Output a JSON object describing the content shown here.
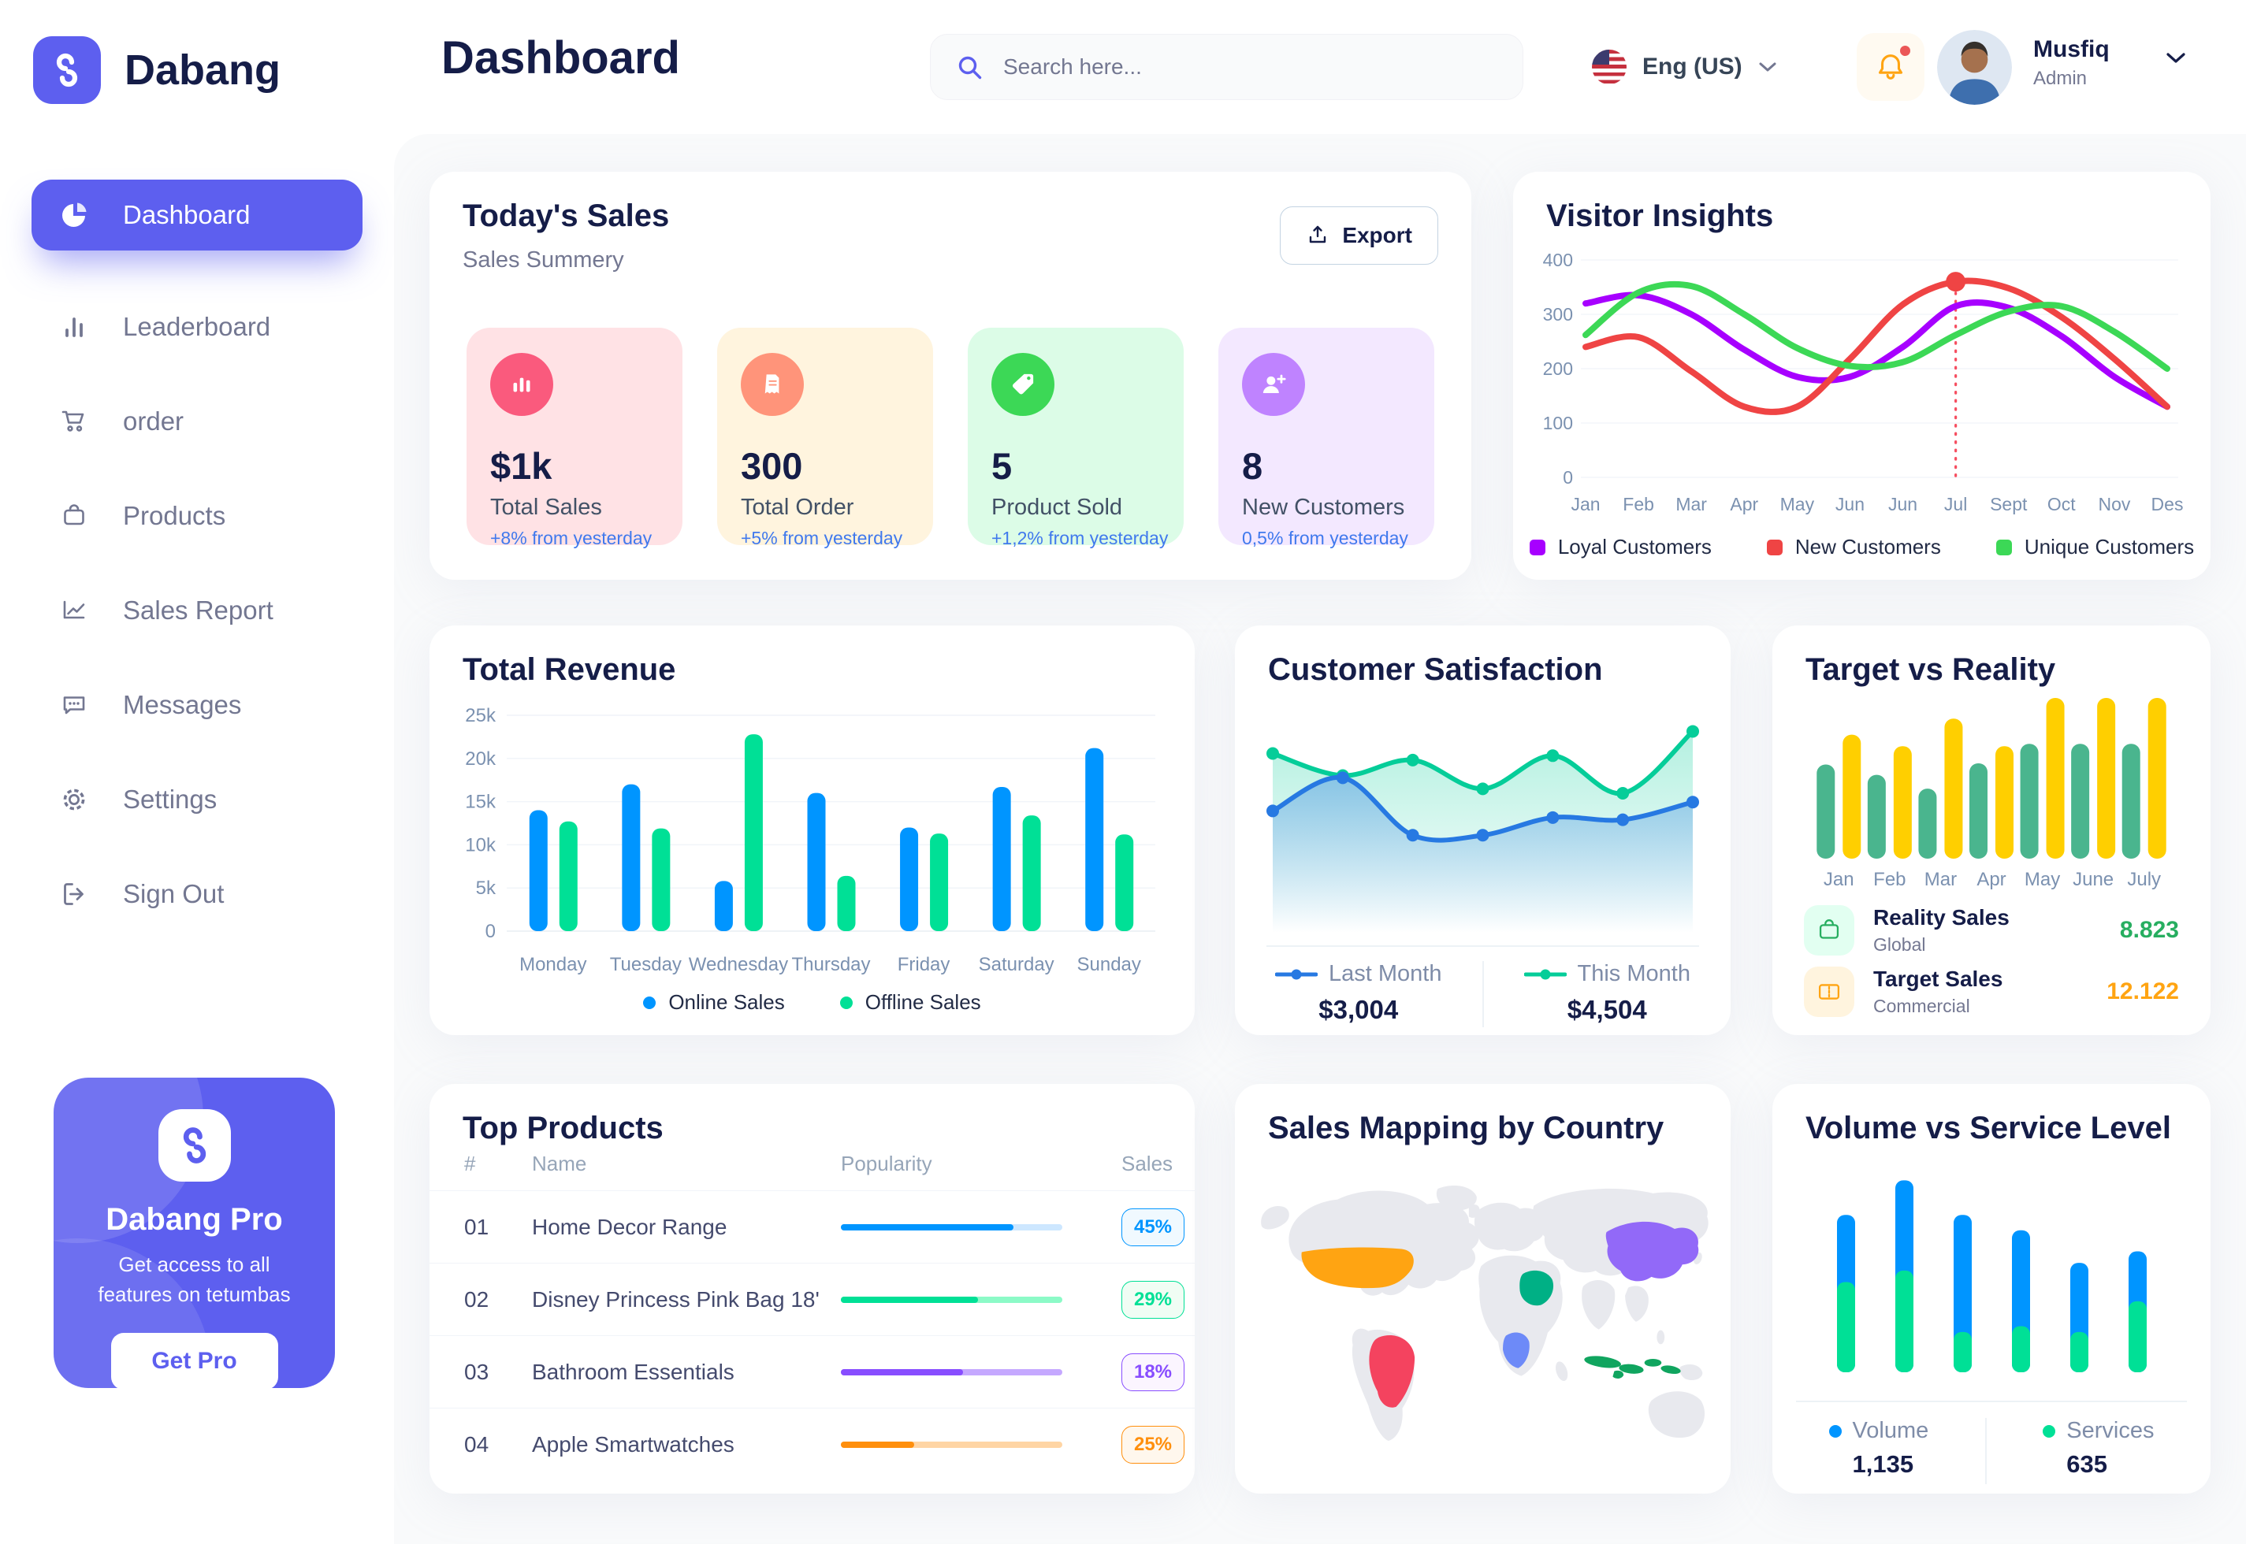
{
  "brand": {
    "name": "Dabang"
  },
  "colors": {
    "primary": "#5D5FEF",
    "navy": "#151D48",
    "gray": "#737791",
    "delta_blue": "#4079ED"
  },
  "topbar": {
    "title": "Dashboard",
    "search_placeholder": "Search here...",
    "language": "Eng (US)",
    "user_name": "Musfiq",
    "user_role": "Admin"
  },
  "sidebar": {
    "items": [
      {
        "label": "Dashboard",
        "icon": "pie-chart-icon",
        "active": true
      },
      {
        "label": "Leaderboard",
        "icon": "bar-chart-icon",
        "active": false
      },
      {
        "label": "order",
        "icon": "cart-icon",
        "active": false
      },
      {
        "label": "Products",
        "icon": "bag-icon",
        "active": false
      },
      {
        "label": "Sales Report",
        "icon": "line-chart-icon",
        "active": false
      },
      {
        "label": "Messages",
        "icon": "chat-icon",
        "active": false
      },
      {
        "label": "Settings",
        "icon": "gear-icon",
        "active": false
      },
      {
        "label": "Sign Out",
        "icon": "sign-out-icon",
        "active": false
      }
    ],
    "promo": {
      "title": "Dabang Pro",
      "subtitle": "Get access to all features on tetumbas",
      "cta": "Get Pro"
    }
  },
  "todays_sales": {
    "title": "Today's Sales",
    "subtitle": "Sales Summery",
    "export_label": "Export",
    "stats": [
      {
        "value": "$1k",
        "label": "Total Sales",
        "delta": "+8% from yesterday",
        "bg": "#FFE2E5",
        "icon_bg": "#FA5A7D",
        "icon": "stat-bar-chart-icon"
      },
      {
        "value": "300",
        "label": "Total Order",
        "delta": "+5% from yesterday",
        "bg": "#FFF4DE",
        "icon_bg": "#FF947A",
        "icon": "stat-receipt-icon"
      },
      {
        "value": "5",
        "label": "Product Sold",
        "delta": "+1,2% from yesterday",
        "bg": "#DCFCE7",
        "icon_bg": "#3CD856",
        "icon": "stat-tag-icon"
      },
      {
        "value": "8",
        "label": "New Customers",
        "delta": "0,5% from yesterday",
        "bg": "#F3E8FF",
        "icon_bg": "#BF83FF",
        "icon": "stat-user-plus-icon"
      }
    ]
  },
  "chart_data": [
    {
      "id": "visitor_insights",
      "type": "line",
      "title": "Visitor Insights",
      "x_labels": [
        "Jan",
        "Feb",
        "Mar",
        "Apr",
        "May",
        "Jun",
        "Jun",
        "Jul",
        "Sept",
        "Oct",
        "Nov",
        "Des"
      ],
      "ylim": [
        0,
        400
      ],
      "yticks": [
        0,
        100,
        200,
        300,
        400
      ],
      "annotation": {
        "x_index": 7,
        "value": 360
      },
      "series": [
        {
          "name": "Loyal Customers",
          "color": "#A700FF",
          "values": [
            320,
            335,
            300,
            235,
            185,
            185,
            240,
            315,
            312,
            260,
            185,
            130
          ]
        },
        {
          "name": "New Customers",
          "color": "#EF4444",
          "values": [
            240,
            258,
            195,
            130,
            130,
            218,
            318,
            360,
            348,
            295,
            218,
            130
          ]
        },
        {
          "name": "Unique Customers",
          "color": "#3CD856",
          "values": [
            262,
            340,
            352,
            300,
            238,
            205,
            212,
            262,
            305,
            315,
            268,
            200
          ]
        }
      ]
    },
    {
      "id": "total_revenue",
      "type": "bar",
      "title": "Total Revenue",
      "categories": [
        "Monday",
        "Tuesday",
        "Wednesday",
        "Thursday",
        "Friday",
        "Saturday",
        "Sunday"
      ],
      "ylim": [
        0,
        25000
      ],
      "ytick_labels": [
        "0",
        "5k",
        "10k",
        "15k",
        "20k",
        "25k"
      ],
      "series": [
        {
          "name": "Online Sales",
          "color": "#0095FF",
          "values": [
            14000,
            17000,
            5800,
            16000,
            12000,
            16700,
            21200
          ]
        },
        {
          "name": "Offline Sales",
          "color": "#00E096",
          "values": [
            12700,
            11900,
            22800,
            6400,
            11300,
            13400,
            11200
          ]
        }
      ]
    },
    {
      "id": "customer_satisfaction",
      "type": "area",
      "title": "Customer Satisfaction",
      "ylim": [
        1.2,
        5.3
      ],
      "series": [
        {
          "name": "Last Month",
          "total": "$3,004",
          "color": "#2779E2",
          "values": [
            3.1,
            3.85,
            2.55,
            2.55,
            2.95,
            2.9,
            3.3
          ]
        },
        {
          "name": "This Month",
          "total": "$4,504",
          "color": "#05CD99",
          "values": [
            4.4,
            3.9,
            4.25,
            3.6,
            4.35,
            3.5,
            4.9
          ]
        }
      ]
    },
    {
      "id": "target_vs_reality",
      "type": "bar",
      "title": "Target vs Reality",
      "categories": [
        "Jan",
        "Feb",
        "Mar",
        "Apr",
        "May",
        "June",
        "July"
      ],
      "ylim": [
        0,
        14
      ],
      "series": [
        {
          "name": "Reality Sales",
          "subtitle": "Global",
          "legend_value": "8.823",
          "color": "#4AB58E",
          "value_color": "#27AE60",
          "tile_bg": "#E2FFF1",
          "icon": "bag-icon",
          "values": [
            8.2,
            7.3,
            6.1,
            8.3,
            10,
            10,
            10
          ]
        },
        {
          "name": "Target Sales",
          "subtitle": "Commercial",
          "legend_value": "12.122",
          "color": "#FFCF00",
          "value_color": "#FFA412",
          "tile_bg": "#FFF4DE",
          "icon": "ticket-icon",
          "values": [
            10.8,
            9.8,
            12.2,
            9.8,
            14,
            14,
            14
          ]
        }
      ]
    },
    {
      "id": "volume_vs_service",
      "type": "stacked-bar",
      "title": "Volume vs Service Level",
      "ylim": [
        0,
        110
      ],
      "series": [
        {
          "name": "Volume",
          "color": "#0095FF",
          "total": "1,135",
          "values": [
            35,
            47,
            61,
            50,
            36,
            26
          ]
        },
        {
          "name": "Services",
          "color": "#00E096",
          "total": "635",
          "values": [
            47,
            53,
            21,
            24,
            21,
            37
          ]
        }
      ]
    },
    {
      "id": "top_products",
      "type": "table",
      "title": "Top Products",
      "columns": [
        "#",
        "Name",
        "Popularity",
        "Sales"
      ],
      "rows": [
        {
          "rank": "01",
          "name": "Home Decor Range",
          "popularity_pct": 78,
          "sales": "45%",
          "color": "#0095FF",
          "track_color": "#CDE7FF",
          "badge_bg": "#F0F9FF"
        },
        {
          "rank": "02",
          "name": "Disney Princess Pink Bag 18'",
          "popularity_pct": 62,
          "sales": "29%",
          "color": "#00E096",
          "track_color": "#8CFAC7",
          "badge_bg": "#F0FDF4"
        },
        {
          "rank": "03",
          "name": "Bathroom Essentials",
          "popularity_pct": 55,
          "sales": "18%",
          "color": "#884DFF",
          "track_color": "#C5A8FF",
          "badge_bg": "#FBF5FF"
        },
        {
          "rank": "04",
          "name": "Apple Smartwatches",
          "popularity_pct": 33,
          "sales": "25%",
          "color": "#FF8F0D",
          "track_color": "#FFD5A4",
          "badge_bg": "#FFF7ED"
        }
      ]
    },
    {
      "id": "sales_mapping",
      "type": "map",
      "title": "Sales Mapping by Country",
      "base_color": "#E8E9EE",
      "countries": [
        {
          "key": "usa",
          "name": "United States",
          "color": "#FFA412"
        },
        {
          "key": "brazil",
          "name": "Brazil",
          "color": "#F4435F"
        },
        {
          "key": "drc",
          "name": "DR Congo",
          "color": "#6D8AF8"
        },
        {
          "key": "saudi",
          "name": "Saudi Arabia",
          "color": "#00B085"
        },
        {
          "key": "china",
          "name": "China",
          "color": "#9269F8"
        },
        {
          "key": "indonesia",
          "name": "Indonesia",
          "color": "#10A55F"
        }
      ]
    }
  ]
}
